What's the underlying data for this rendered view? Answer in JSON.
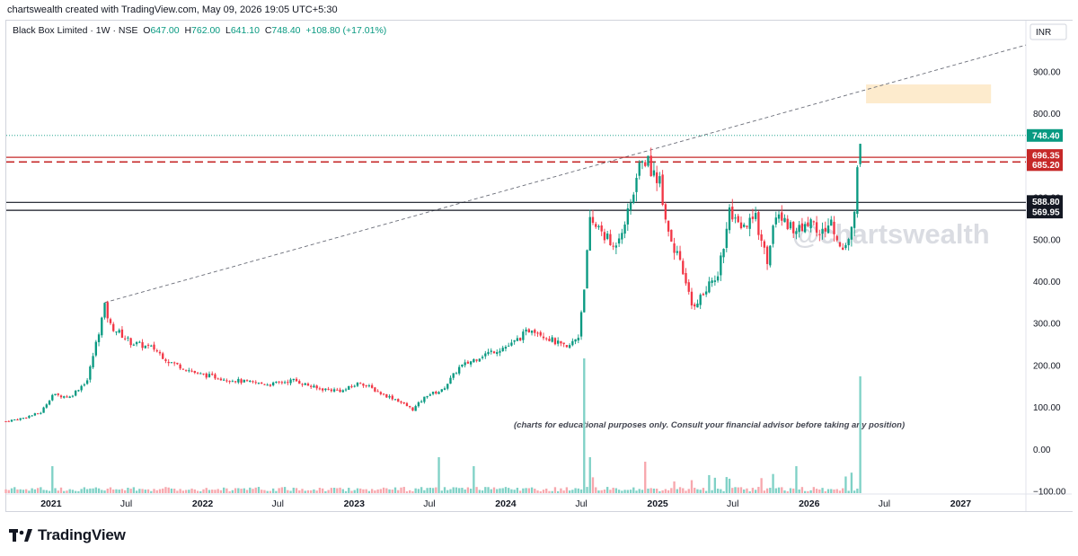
{
  "header": {
    "credit": "chartswealth created with TradingView.com, May 09, 2026 19:05 UTC+5:30"
  },
  "symbol_bar": {
    "name": "Black Box Limited · 1W · NSE",
    "open_label": "O",
    "open": "647.00",
    "high_label": "H",
    "high": "762.00",
    "low_label": "L",
    "low": "641.10",
    "close_label": "C",
    "close": "748.40",
    "change": "+108.80 (+17.01%)"
  },
  "currency": "INR",
  "watermark": "@chartswealth",
  "disclaimer": "(charts for educational purposes only. Consult your financial advisor before taking any position)",
  "footer": {
    "brand": "TradingView"
  },
  "colors": {
    "up": "#089981",
    "down": "#f23645",
    "volume_up": "#7fd1c6",
    "volume_down": "#f7a7ad",
    "resistance": "#c62828",
    "support": "#131722",
    "target_zone": "#fde8c4"
  },
  "chart_data": {
    "type": "candlestick",
    "timeframe": "1W",
    "y_axis": {
      "ticks": [
        "900.00",
        "800.00",
        "700.00",
        "600.00",
        "500.00",
        "400.00",
        "300.00",
        "200.00",
        "100.00",
        "0.00",
        "−100.00"
      ],
      "range": [
        -100,
        1000
      ]
    },
    "x_axis": {
      "tick_labels": [
        "2021",
        "Jul",
        "2022",
        "Jul",
        "2023",
        "Jul",
        "2024",
        "Jul",
        "2025",
        "Jul",
        "2026",
        "Jul",
        "2027"
      ],
      "range": [
        "2020-09-15",
        "2027-06-07"
      ]
    },
    "last_price": {
      "value": 748.4,
      "label": "748.40"
    },
    "horizontal_levels": [
      {
        "value": 696.35,
        "label": "696.35",
        "style": "solid",
        "color": "#c62828"
      },
      {
        "value": 685.2,
        "label": "685.20",
        "style": "dashed",
        "color": "#c62828"
      },
      {
        "value": 588.8,
        "label": "588.80",
        "style": "solid",
        "color": "#131722"
      },
      {
        "value": 569.95,
        "label": "569.95",
        "style": "solid",
        "color": "#131722"
      }
    ],
    "trendline": {
      "from": {
        "date": "2021-05-10",
        "price": 350
      },
      "to": {
        "date": "2027-06-07",
        "price": 964
      },
      "style": "dashed"
    },
    "target_zone": {
      "from_date": "2026-05-18",
      "to_date": "2027-03-15",
      "low": 825,
      "high": 870
    },
    "price_path": [
      [
        "2020-09-14",
        67
      ],
      [
        "2020-10-26",
        75
      ],
      [
        "2020-12-07",
        88
      ],
      [
        "2021-01-04",
        130
      ],
      [
        "2021-02-15",
        125
      ],
      [
        "2021-03-29",
        165
      ],
      [
        "2021-05-10",
        340
      ],
      [
        "2021-05-24",
        295
      ],
      [
        "2021-07-12",
        255
      ],
      [
        "2021-09-06",
        240
      ],
      [
        "2021-10-11",
        210
      ],
      [
        "2021-12-20",
        180
      ],
      [
        "2022-02-14",
        170
      ],
      [
        "2022-04-18",
        160
      ],
      [
        "2022-06-13",
        155
      ],
      [
        "2022-08-08",
        165
      ],
      [
        "2022-10-03",
        145
      ],
      [
        "2022-12-05",
        140
      ],
      [
        "2023-01-16",
        160
      ],
      [
        "2023-03-13",
        130
      ],
      [
        "2023-04-10",
        120
      ],
      [
        "2023-05-22",
        95
      ],
      [
        "2023-06-26",
        130
      ],
      [
        "2023-07-31",
        140
      ],
      [
        "2023-09-11",
        195
      ],
      [
        "2023-11-06",
        225
      ],
      [
        "2024-01-15",
        250
      ],
      [
        "2024-03-04",
        290
      ],
      [
        "2024-04-22",
        260
      ],
      [
        "2024-05-27",
        240
      ],
      [
        "2024-06-24",
        270
      ],
      [
        "2024-07-08",
        390
      ],
      [
        "2024-07-22",
        540
      ],
      [
        "2024-08-19",
        520
      ],
      [
        "2024-09-16",
        480
      ],
      [
        "2024-10-21",
        560
      ],
      [
        "2024-11-25",
        700
      ],
      [
        "2025-01-06",
        640
      ],
      [
        "2025-01-27",
        520
      ],
      [
        "2025-03-03",
        420
      ],
      [
        "2025-03-24",
        340
      ],
      [
        "2025-04-21",
        370
      ],
      [
        "2025-05-26",
        420
      ],
      [
        "2025-06-23",
        560
      ],
      [
        "2025-07-21",
        520
      ],
      [
        "2025-08-25",
        550
      ],
      [
        "2025-09-22",
        450
      ],
      [
        "2025-10-13",
        560
      ],
      [
        "2025-11-10",
        540
      ],
      [
        "2025-12-08",
        520
      ],
      [
        "2026-01-05",
        550
      ],
      [
        "2026-01-26",
        510
      ],
      [
        "2026-02-23",
        540
      ],
      [
        "2026-03-16",
        480
      ],
      [
        "2026-04-06",
        500
      ],
      [
        "2026-04-20",
        570
      ],
      [
        "2026-05-04",
        748
      ]
    ],
    "volume_spikes": [
      [
        "2021-01-04",
        30
      ],
      [
        "2023-07-24",
        40
      ],
      [
        "2023-10-16",
        30
      ],
      [
        "2024-07-08",
        150
      ],
      [
        "2024-07-22",
        40
      ],
      [
        "2024-12-02",
        35
      ],
      [
        "2025-06-23",
        40
      ],
      [
        "2025-12-01",
        30
      ],
      [
        "2026-05-04",
        130
      ]
    ]
  }
}
